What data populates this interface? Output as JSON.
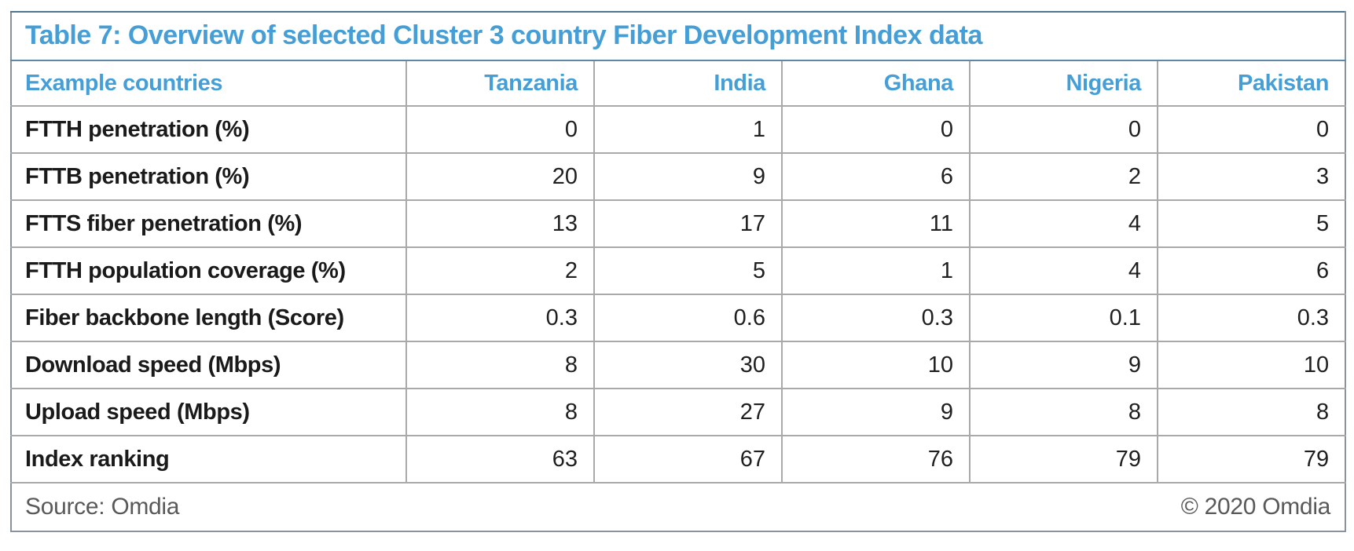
{
  "title": "Table 7: Overview of selected Cluster 3 country Fiber Development Index data",
  "colors": {
    "accent_blue": "#459fd6",
    "grid_gray": "#a9a9a9",
    "outer_border": "#8a929b",
    "title_divider": "#5d89a8",
    "body_text": "#1f1f1f",
    "footer_gray": "#595959"
  },
  "table": {
    "header": {
      "label_col": "Example countries",
      "countries": [
        "Tanzania",
        "India",
        "Ghana",
        "Nigeria",
        "Pakistan"
      ]
    },
    "rows": [
      {
        "label": "FTTH penetration (%)",
        "values": [
          "0",
          "1",
          "0",
          "0",
          "0"
        ]
      },
      {
        "label": "FTTB penetration (%)",
        "values": [
          "20",
          "9",
          "6",
          "2",
          "3"
        ]
      },
      {
        "label": "FTTS fiber penetration (%)",
        "values": [
          "13",
          "17",
          "11",
          "4",
          "5"
        ]
      },
      {
        "label": "FTTH population coverage (%)",
        "values": [
          "2",
          "5",
          "1",
          "4",
          "6"
        ]
      },
      {
        "label": "Fiber backbone length (Score)",
        "values": [
          "0.3",
          "0.6",
          "0.3",
          "0.1",
          "0.3"
        ]
      },
      {
        "label": "Download speed (Mbps)",
        "values": [
          "8",
          "30",
          "10",
          "9",
          "10"
        ]
      },
      {
        "label": "Upload speed (Mbps)",
        "values": [
          "8",
          "27",
          "9",
          "8",
          "8"
        ]
      },
      {
        "label": "Index ranking",
        "values": [
          "63",
          "67",
          "76",
          "79",
          "79"
        ]
      }
    ]
  },
  "footer": {
    "source": "Source: Omdia",
    "copyright": "© 2020 Omdia"
  },
  "chart_data": {
    "type": "table",
    "title": "Table 7: Overview of selected Cluster 3 country Fiber Development Index data",
    "categories": [
      "Tanzania",
      "India",
      "Ghana",
      "Nigeria",
      "Pakistan"
    ],
    "series": [
      {
        "name": "FTTH penetration (%)",
        "values": [
          0,
          1,
          0,
          0,
          0
        ]
      },
      {
        "name": "FTTB penetration (%)",
        "values": [
          20,
          9,
          6,
          2,
          3
        ]
      },
      {
        "name": "FTTS fiber penetration (%)",
        "values": [
          13,
          17,
          11,
          4,
          5
        ]
      },
      {
        "name": "FTTH population coverage (%)",
        "values": [
          2,
          5,
          1,
          4,
          6
        ]
      },
      {
        "name": "Fiber backbone length (Score)",
        "values": [
          0.3,
          0.6,
          0.3,
          0.1,
          0.3
        ]
      },
      {
        "name": "Download speed (Mbps)",
        "values": [
          8,
          30,
          10,
          9,
          10
        ]
      },
      {
        "name": "Upload speed (Mbps)",
        "values": [
          8,
          27,
          9,
          8,
          8
        ]
      },
      {
        "name": "Index ranking",
        "values": [
          63,
          67,
          76,
          79,
          79
        ]
      }
    ]
  }
}
